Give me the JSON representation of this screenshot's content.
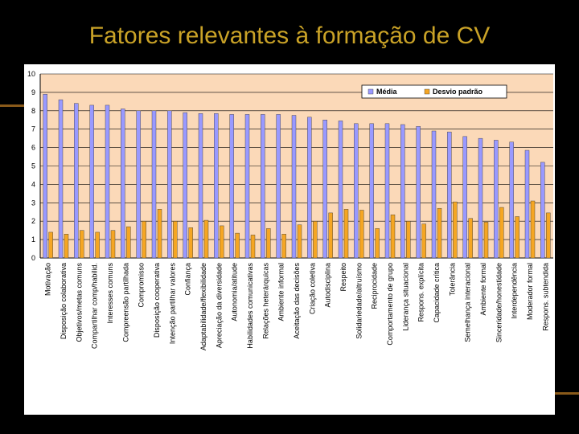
{
  "slide": {
    "title": "Fatores relevantes à formação de CV"
  },
  "colors": {
    "plot_background": "#fbd9b8",
    "series_mean": "#9999ff",
    "series_sd": "#f5a623",
    "title_color": "#c9a227"
  },
  "chart_data": {
    "type": "bar",
    "title": "",
    "xlabel": "",
    "ylabel": "",
    "ylim": [
      0,
      10
    ],
    "yticks": [
      0,
      1,
      2,
      3,
      4,
      5,
      6,
      7,
      8,
      9,
      10
    ],
    "grid": true,
    "legend_position": "top-right",
    "categories": [
      "Motivação",
      "Disposição colaborativa",
      "Objetivos/metas comuns",
      "Compartilhar comp/habilid.",
      "Interesses comuns",
      "Compreensão partilhada",
      "Compromisso",
      "Disposição cooperativa",
      "Intenção partilhar valores",
      "Confiança",
      "Adaptabilidade/flexibilidade",
      "Apreciação da diversidade",
      "Autonomia/atitude",
      "Habilidades comunicativas",
      "Relações heterárquicas",
      "Ambiente informal",
      "Aceitação das decisões",
      "Criação coletiva",
      "Autodisciplina",
      "Respeito",
      "Solidariedade/altruísmo",
      "Reciprocidade",
      "Comportamento de grupo",
      "Liderança situacional",
      "Respons. explícita",
      "Capacidade crítica",
      "Tolerância",
      "Semelhança interacional",
      "Ambiente formal",
      "Sinceridade/honestidade",
      "Interdependência",
      "Moderador formal",
      "Respons. subtendida"
    ],
    "series": [
      {
        "name": "Média",
        "values": [
          8.9,
          8.6,
          8.4,
          8.3,
          8.3,
          8.1,
          8.0,
          8.0,
          8.0,
          7.9,
          7.85,
          7.85,
          7.8,
          7.8,
          7.8,
          7.8,
          7.75,
          7.65,
          7.5,
          7.45,
          7.3,
          7.3,
          7.3,
          7.25,
          7.15,
          6.9,
          6.85,
          6.6,
          6.5,
          6.4,
          6.3,
          5.85,
          5.2
        ]
      },
      {
        "name": "Desvio padrão",
        "values": [
          1.4,
          1.3,
          1.5,
          1.4,
          1.5,
          1.7,
          2.0,
          2.65,
          2.0,
          1.65,
          2.05,
          1.75,
          1.35,
          1.25,
          1.6,
          1.3,
          1.8,
          2.0,
          2.45,
          2.65,
          2.6,
          1.6,
          2.35,
          2.0,
          1.85,
          2.7,
          3.05,
          2.15,
          1.95,
          2.75,
          2.25,
          3.1,
          2.45
        ]
      }
    ]
  }
}
